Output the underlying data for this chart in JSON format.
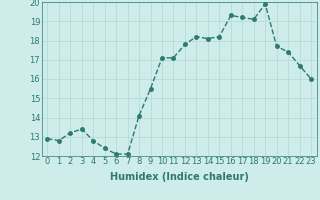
{
  "x": [
    0,
    1,
    2,
    3,
    4,
    5,
    6,
    7,
    8,
    9,
    10,
    11,
    12,
    13,
    14,
    15,
    16,
    17,
    18,
    19,
    20,
    21,
    22,
    23
  ],
  "y": [
    12.9,
    12.8,
    13.2,
    13.4,
    12.8,
    12.4,
    12.1,
    12.1,
    14.1,
    15.5,
    17.1,
    17.1,
    17.8,
    18.2,
    18.1,
    18.2,
    19.3,
    19.2,
    19.1,
    19.9,
    17.7,
    17.4,
    16.7,
    16.0
  ],
  "xlabel": "Humidex (Indice chaleur)",
  "xlim": [
    -0.5,
    23.5
  ],
  "ylim": [
    12,
    20
  ],
  "yticks": [
    12,
    13,
    14,
    15,
    16,
    17,
    18,
    19,
    20
  ],
  "xticks": [
    0,
    1,
    2,
    3,
    4,
    5,
    6,
    7,
    8,
    9,
    10,
    11,
    12,
    13,
    14,
    15,
    16,
    17,
    18,
    19,
    20,
    21,
    22,
    23
  ],
  "xtick_labels": [
    "0",
    "1",
    "2",
    "3",
    "4",
    "5",
    "6",
    "7",
    "8",
    "9",
    "10",
    "11",
    "12",
    "13",
    "14",
    "15",
    "16",
    "17",
    "18",
    "19",
    "20",
    "21",
    "22",
    "23"
  ],
  "line_color": "#2d7a6e",
  "marker_size": 2.5,
  "line_width": 1.0,
  "bg_color": "#cdecea",
  "grid_color": "#b8dbd8",
  "xlabel_fontsize": 7,
  "tick_fontsize": 6
}
